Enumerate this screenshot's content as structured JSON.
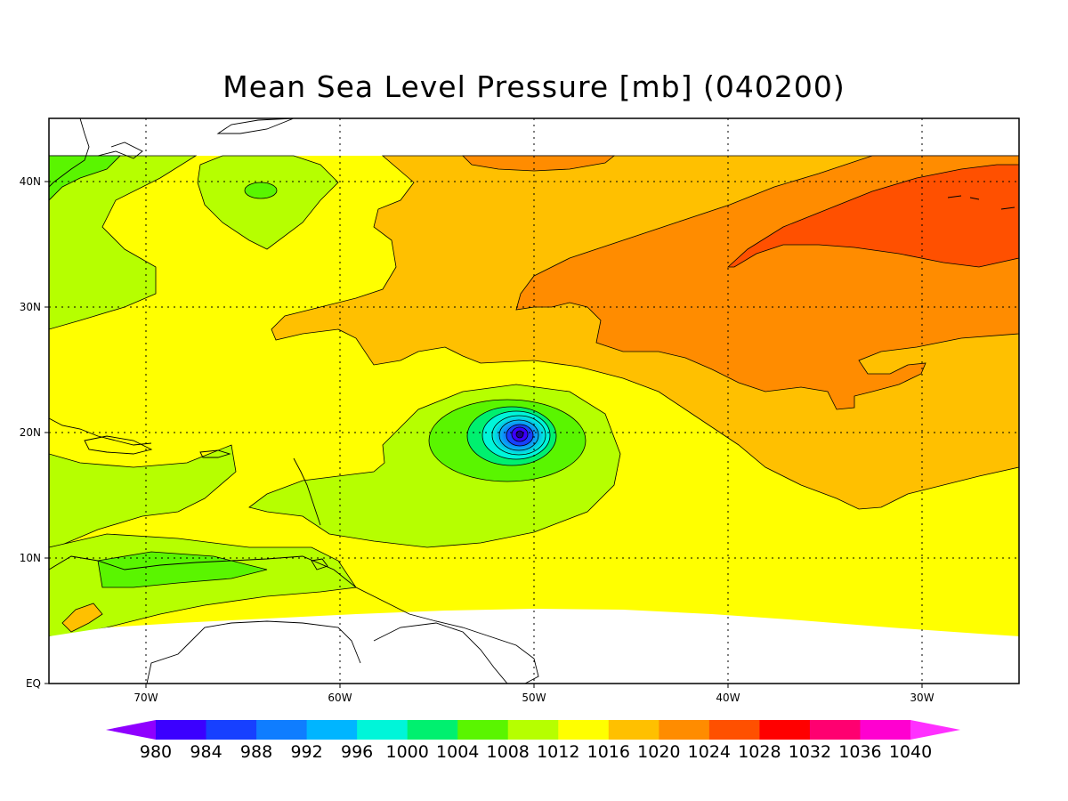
{
  "title": "Mean Sea Level Pressure [mb] (040200)",
  "y_axis": {
    "labels": [
      "EQ",
      "10N",
      "20N",
      "30N",
      "40N"
    ]
  },
  "x_axis": {
    "labels": [
      "70W",
      "60W",
      "50W",
      "40W",
      "30W"
    ]
  },
  "colorbar": {
    "levels": [
      980,
      984,
      988,
      992,
      996,
      1000,
      1004,
      1008,
      1012,
      1016,
      1020,
      1024,
      1028,
      1032,
      1036,
      1040
    ],
    "colors": [
      "#8f00ff",
      "#3b00ff",
      "#1740ff",
      "#0f7dff",
      "#00b5ff",
      "#00f5d9",
      "#00f06f",
      "#5af500",
      "#b6ff00",
      "#ffff00",
      "#ffc000",
      "#ff8c00",
      "#ff5000",
      "#ff0000",
      "#ff0070",
      "#ff00d0",
      "#ff30ff"
    ]
  },
  "map": {
    "lon_range": [
      -75,
      -25
    ],
    "lat_range": [
      0,
      45
    ],
    "data_lat_top": 42,
    "grid": "dotted",
    "features": [
      "hurricane low near 20N 51W",
      "high pressure ridge 30-40N 25-40W"
    ]
  }
}
